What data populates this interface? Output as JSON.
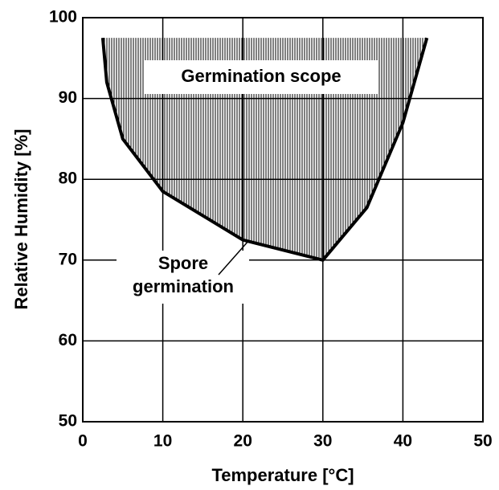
{
  "chart_data": {
    "type": "line",
    "x_label": "Temperature  [°C]",
    "y_label": "Relative Humidity  [%]",
    "x": [
      2.5,
      3,
      5,
      10,
      20,
      30,
      35.5,
      40,
      43
    ],
    "values": [
      97.5,
      92,
      85,
      78.5,
      72.5,
      70,
      76.5,
      87,
      97.5
    ],
    "color": "#000000",
    "fill": "vertical-hatch",
    "xlim": [
      0,
      50
    ],
    "xticks": [
      0,
      10,
      20,
      30,
      40,
      50
    ],
    "ylim": [
      50,
      100
    ],
    "yticks": [
      50,
      60,
      70,
      80,
      90,
      100
    ],
    "grid": true,
    "area_label": "Germination scope",
    "curve_label": [
      "Spore",
      "germination"
    ]
  }
}
